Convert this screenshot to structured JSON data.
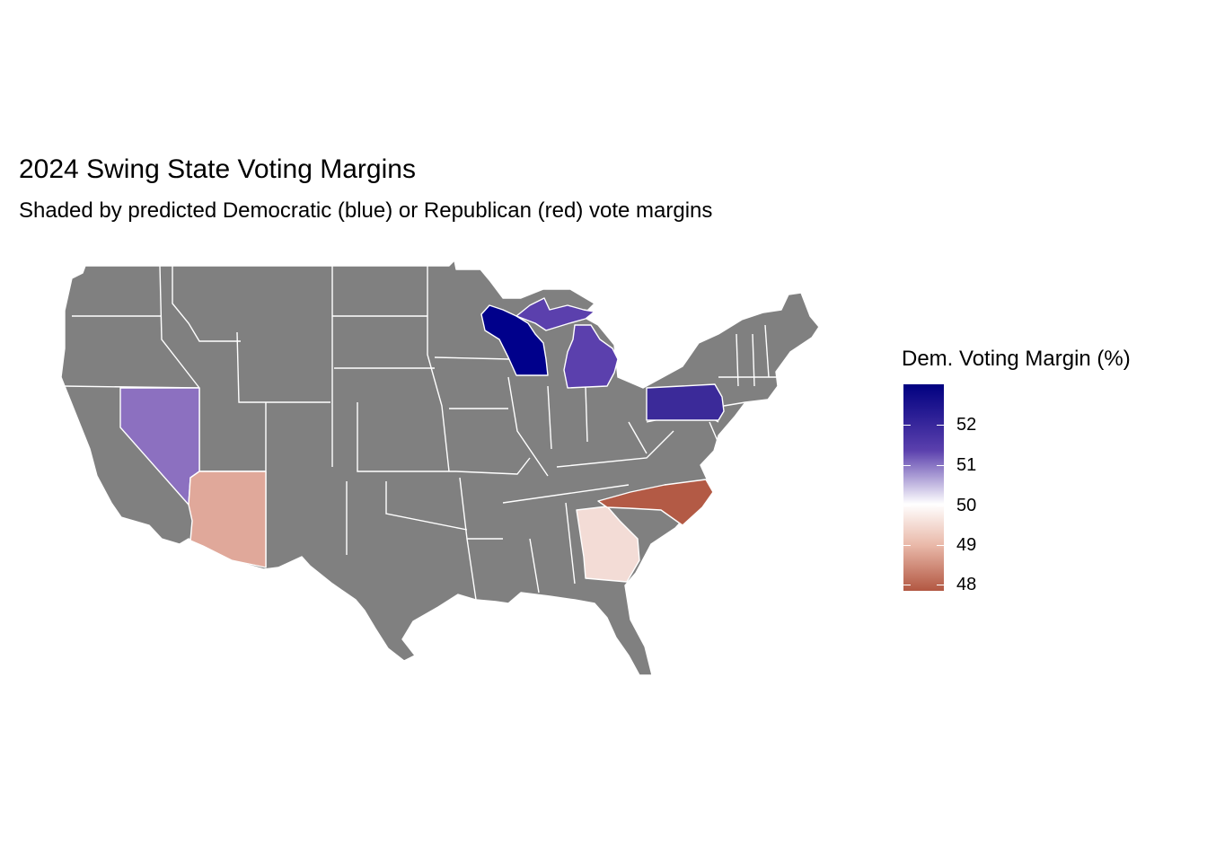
{
  "title": "2024 Swing State Voting Margins",
  "subtitle": "Shaded by predicted Democratic (blue) or Republican (red) vote margins",
  "legend": {
    "title": "Dem. Voting Margin (%)",
    "ticks": [
      "52",
      "51",
      "50",
      "49",
      "48"
    ],
    "low_color": "#b25742",
    "mid_color": "#ffffff",
    "high_color": "#000080"
  },
  "base_state_color": "#808080",
  "border_color": "#ffffff",
  "swing_states": [
    {
      "state": "Wisconsin",
      "color": "#00008b"
    },
    {
      "state": "Pennsylvania",
      "color": "#3b2a99"
    },
    {
      "state": "Michigan",
      "color": "#5b40ad"
    },
    {
      "state": "Nevada",
      "color": "#8c70c0"
    },
    {
      "state": "Georgia",
      "color": "#f3dcd6"
    },
    {
      "state": "Arizona",
      "color": "#e0a89a"
    },
    {
      "state": "North Carolina",
      "color": "#b35a45"
    }
  ]
}
